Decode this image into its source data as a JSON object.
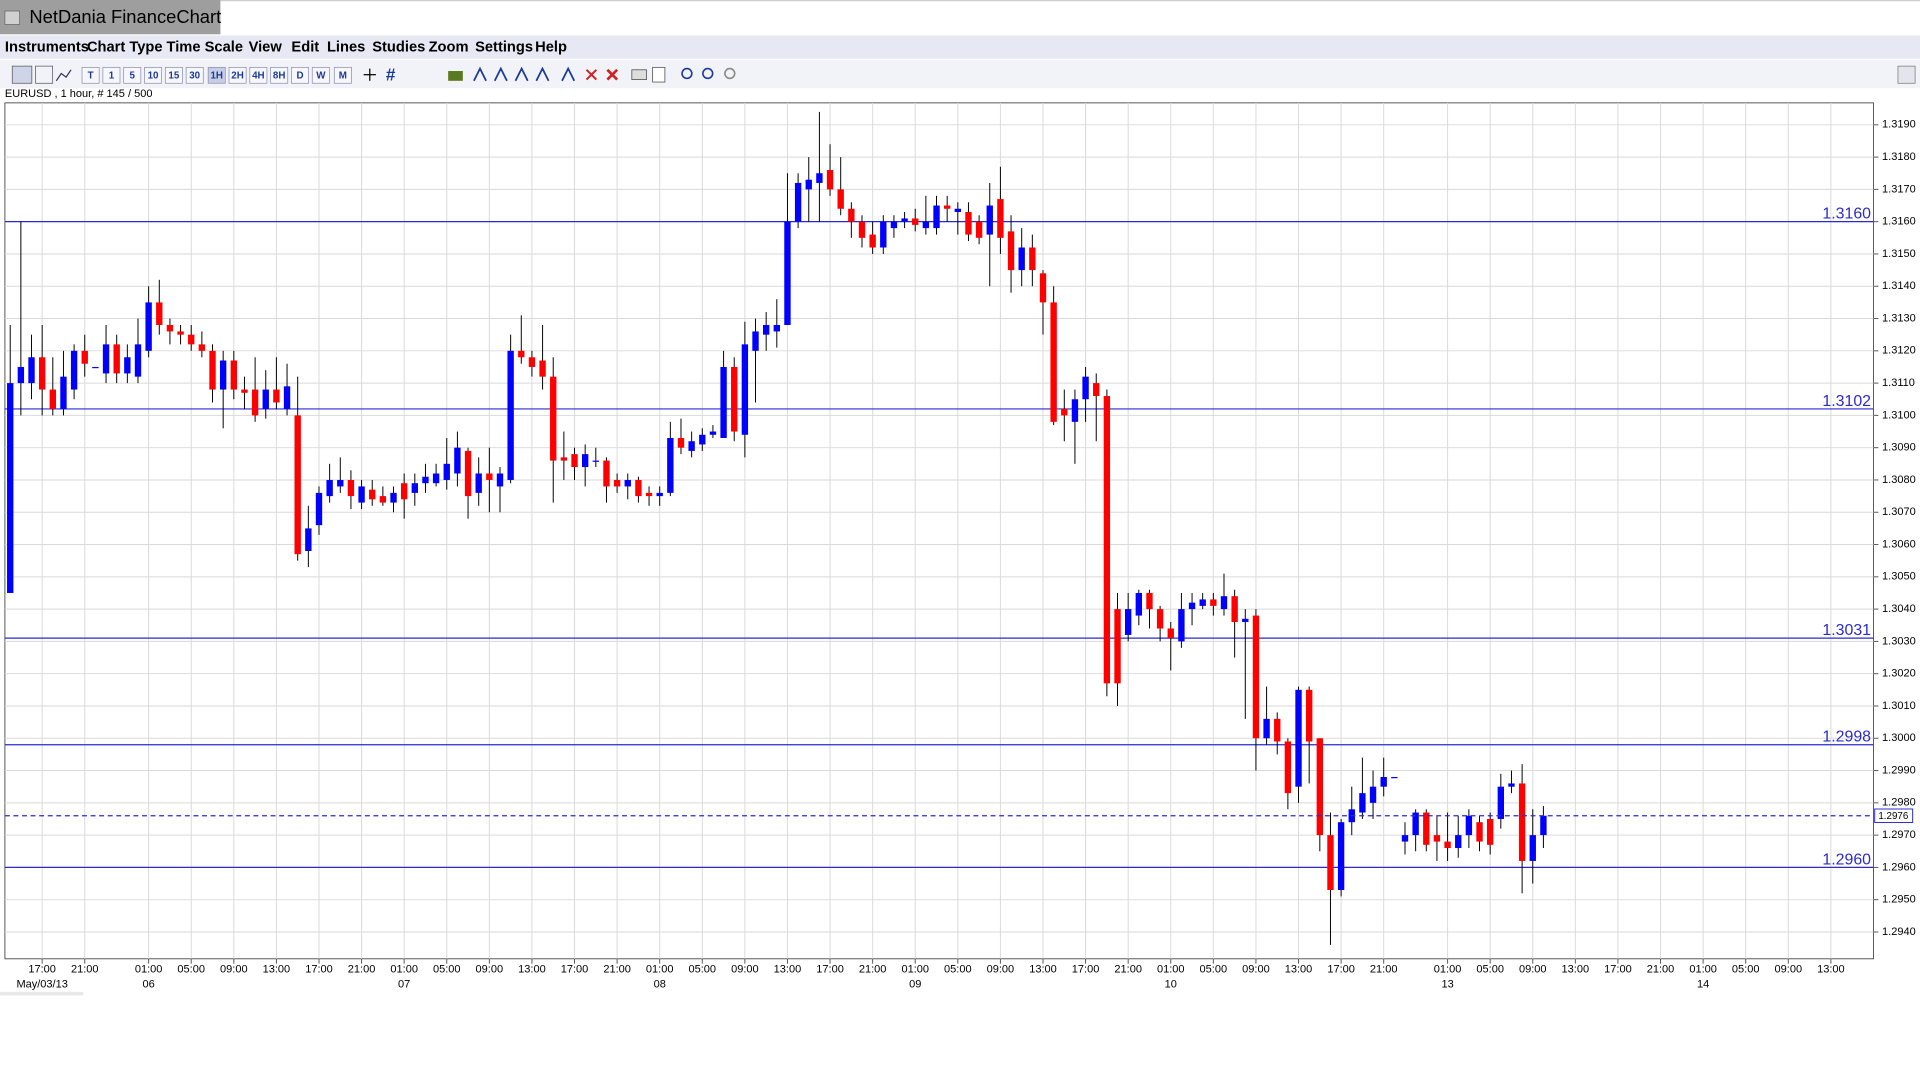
{
  "window": {
    "title": "NetDania FinanceChart"
  },
  "menu": [
    "Instruments",
    "Chart Type",
    "Time Scale",
    "View",
    "Edit",
    "Lines",
    "Studies",
    "Zoom",
    "Settings",
    "Help"
  ],
  "toolbar": [
    "T",
    "1",
    "5",
    "10",
    "15",
    "30",
    "1H",
    "2H",
    "4H",
    "8H",
    "D",
    "W",
    "M"
  ],
  "chart_data": {
    "type": "candlestick",
    "instrument_label": "EURUSD , 1 hour, # 145 / 500",
    "up_color": "#0000ff",
    "down_color": "#ff0000",
    "grid": true,
    "open": [
      1.3045,
      1.311,
      1.311,
      1.3118,
      1.3108,
      1.3102,
      1.3108,
      1.312,
      1.3115,
      1.3113,
      1.3122,
      1.3113,
      1.3112,
      1.312,
      1.3135,
      1.3128,
      1.3126,
      1.3125,
      1.3122,
      1.312,
      1.3108,
      1.3117,
      1.3108,
      1.3108,
      1.3102,
      1.3108,
      1.3102,
      1.31,
      1.3058,
      1.3066,
      1.3075,
      1.3078,
      1.308,
      1.3073,
      1.3077,
      1.3075,
      1.3073,
      1.3079,
      1.3076,
      1.3079,
      1.3079,
      1.308,
      1.3082,
      1.3089,
      1.3076,
      1.3082,
      1.3078,
      1.308,
      1.312,
      1.3118,
      1.3117,
      1.3112,
      1.3087,
      1.3088,
      1.3084,
      1.3086,
      1.3086,
      1.308,
      1.3078,
      1.308,
      1.3076,
      1.3075,
      1.3076,
      1.3093,
      1.3089,
      1.3091,
      1.3094,
      1.3093,
      1.3115,
      1.3094,
      1.312,
      1.3125,
      1.3126,
      1.3128,
      1.316,
      1.317,
      1.3172,
      1.3176,
      1.317,
      1.3164,
      1.316,
      1.3156,
      1.3152,
      1.3158,
      1.316,
      1.3161,
      1.3158,
      1.3158,
      1.3165,
      1.3163,
      1.3163,
      1.316,
      1.3156,
      1.3167,
      1.3157,
      1.3145,
      1.3152,
      1.3144,
      1.3135,
      1.3102,
      1.3098,
      1.3105,
      1.311,
      1.3106,
      1.304,
      1.3032,
      1.3038,
      1.3045,
      1.304,
      1.3034,
      1.303,
      1.304,
      1.3041,
      1.3043,
      1.304,
      1.3044,
      1.3036,
      1.3038,
      1.3,
      1.3006,
      1.2999,
      1.2985,
      1.3015,
      1.3,
      1.297,
      1.2953,
      1.2974,
      1.2977,
      1.298,
      1.2985,
      1.2988,
      1.2968,
      1.297,
      1.2977,
      1.297,
      1.2968,
      1.2966,
      1.297,
      1.2974,
      1.2975,
      1.2975,
      1.2985,
      1.2986,
      1.2962,
      1.297
    ],
    "high": [
      1.3128,
      1.316,
      1.3125,
      1.3128,
      1.3118,
      1.312,
      1.3122,
      1.3125,
      1.3115,
      1.3128,
      1.3125,
      1.3122,
      1.313,
      1.314,
      1.3142,
      1.313,
      1.3128,
      1.3128,
      1.3126,
      1.3122,
      1.312,
      1.312,
      1.3112,
      1.3118,
      1.3114,
      1.3118,
      1.3116,
      1.3112,
      1.3072,
      1.3078,
      1.3085,
      1.3087,
      1.3083,
      1.308,
      1.308,
      1.3078,
      1.3078,
      1.3082,
      1.3082,
      1.3085,
      1.3085,
      1.3093,
      1.3095,
      1.309,
      1.3087,
      1.309,
      1.3084,
      1.3125,
      1.3131,
      1.312,
      1.3128,
      1.3118,
      1.3095,
      1.309,
      1.3091,
      1.309,
      1.3087,
      1.3082,
      1.3082,
      1.3081,
      1.3078,
      1.3078,
      1.3098,
      1.3099,
      1.3095,
      1.3096,
      1.3097,
      1.312,
      1.3118,
      1.3129,
      1.313,
      1.3132,
      1.3136,
      1.3175,
      1.3175,
      1.318,
      1.3194,
      1.3184,
      1.318,
      1.3166,
      1.3162,
      1.316,
      1.3162,
      1.3162,
      1.3163,
      1.3164,
      1.3168,
      1.3168,
      1.3168,
      1.3166,
      1.3166,
      1.3162,
      1.3172,
      1.3177,
      1.3162,
      1.3158,
      1.3156,
      1.3145,
      1.314,
      1.3108,
      1.3108,
      1.3115,
      1.3113,
      1.3108,
      1.3045,
      1.3045,
      1.3046,
      1.3046,
      1.3041,
      1.3036,
      1.3045,
      1.3045,
      1.3045,
      1.3045,
      1.3051,
      1.3046,
      1.304,
      1.304,
      1.3016,
      1.3008,
      1.3,
      1.3016,
      1.3016,
      1.3,
      1.2977,
      1.2975,
      1.2985,
      1.2994,
      1.299,
      1.2994,
      1.2988,
      1.2974,
      1.2978,
      1.2978,
      1.2976,
      1.2977,
      1.2976,
      1.2978,
      1.2976,
      1.2977,
      1.2989,
      1.299,
      1.2992,
      1.2978,
      1.2979
    ],
    "low": [
      1.3045,
      1.31,
      1.3105,
      1.31,
      1.31,
      1.31,
      1.3105,
      1.3112,
      1.3115,
      1.311,
      1.311,
      1.311,
      1.311,
      1.3118,
      1.3125,
      1.3122,
      1.3122,
      1.312,
      1.3118,
      1.3104,
      1.3096,
      1.3105,
      1.3102,
      1.3098,
      1.3099,
      1.3102,
      1.31,
      1.3055,
      1.3053,
      1.3063,
      1.3073,
      1.3076,
      1.3071,
      1.3071,
      1.3072,
      1.3072,
      1.307,
      1.3068,
      1.3072,
      1.3076,
      1.3078,
      1.3077,
      1.3078,
      1.3068,
      1.3072,
      1.307,
      1.307,
      1.3079,
      1.3116,
      1.3112,
      1.3108,
      1.3073,
      1.308,
      1.308,
      1.3078,
      1.3084,
      1.3073,
      1.3076,
      1.3074,
      1.3073,
      1.3072,
      1.3072,
      1.3075,
      1.3088,
      1.3087,
      1.3089,
      1.3093,
      1.3093,
      1.3092,
      1.3087,
      1.3104,
      1.312,
      1.3121,
      1.3128,
      1.3158,
      1.316,
      1.316,
      1.3168,
      1.3162,
      1.3155,
      1.3152,
      1.315,
      1.315,
      1.3155,
      1.3158,
      1.3157,
      1.3156,
      1.3156,
      1.316,
      1.3156,
      1.3154,
      1.3153,
      1.314,
      1.315,
      1.3138,
      1.314,
      1.314,
      1.3125,
      1.3097,
      1.3092,
      1.3085,
      1.3098,
      1.3092,
      1.3013,
      1.301,
      1.303,
      1.3035,
      1.3034,
      1.303,
      1.3021,
      1.3028,
      1.3035,
      1.304,
      1.3038,
      1.3038,
      1.3025,
      1.3006,
      1.299,
      1.2998,
      1.2995,
      1.2978,
      1.298,
      1.2986,
      1.2965,
      1.2936,
      1.2951,
      1.297,
      1.2975,
      1.2975,
      1.2982,
      1.2988,
      1.2964,
      1.2965,
      1.2965,
      1.2962,
      1.2962,
      1.2963,
      1.2966,
      1.2965,
      1.2964,
      1.2972,
      1.2983,
      1.2952,
      1.2955,
      1.2966
    ],
    "close": [
      1.311,
      1.3115,
      1.3118,
      1.3108,
      1.3102,
      1.3112,
      1.312,
      1.3116,
      1.3115,
      1.3122,
      1.3113,
      1.3118,
      1.3122,
      1.3135,
      1.3128,
      1.3126,
      1.3125,
      1.3122,
      1.312,
      1.3108,
      1.3117,
      1.3108,
      1.3107,
      1.31,
      1.3108,
      1.3104,
      1.3109,
      1.3057,
      1.3065,
      1.3076,
      1.308,
      1.308,
      1.3075,
      1.3078,
      1.3074,
      1.3073,
      1.3076,
      1.3074,
      1.3079,
      1.3081,
      1.3082,
      1.3085,
      1.309,
      1.3075,
      1.3082,
      1.308,
      1.3082,
      1.312,
      1.3118,
      1.3115,
      1.3112,
      1.3086,
      1.3086,
      1.3084,
      1.3088,
      1.3086,
      1.3078,
      1.3078,
      1.308,
      1.3075,
      1.3075,
      1.3076,
      1.3093,
      1.309,
      1.3092,
      1.3094,
      1.3095,
      1.3115,
      1.3095,
      1.3122,
      1.3126,
      1.3128,
      1.3128,
      1.316,
      1.3172,
      1.3173,
      1.3175,
      1.317,
      1.3164,
      1.316,
      1.3155,
      1.3152,
      1.316,
      1.316,
      1.3161,
      1.3159,
      1.316,
      1.3165,
      1.3164,
      1.3164,
      1.3156,
      1.3155,
      1.3165,
      1.3155,
      1.3145,
      1.3152,
      1.3145,
      1.3135,
      1.3098,
      1.31,
      1.3105,
      1.3112,
      1.3106,
      1.3017,
      1.3017,
      1.304,
      1.3045,
      1.304,
      1.3034,
      1.3031,
      1.304,
      1.3042,
      1.3043,
      1.3041,
      1.3044,
      1.3036,
      1.3037,
      1.3,
      1.3006,
      1.2999,
      1.2983,
      1.3015,
      1.2999,
      1.297,
      1.2953,
      1.2974,
      1.2978,
      1.2983,
      1.2985,
      1.2988,
      1.2988,
      1.297,
      1.2977,
      1.2967,
      1.2968,
      1.2966,
      1.297,
      1.2976,
      1.2968,
      1.2967,
      1.2985,
      1.2986,
      1.2962,
      1.297,
      1.2976
    ],
    "xlim": [
      -0.5,
      175
    ],
    "xticks": [
      {
        "value": 3,
        "label": "17:00"
      },
      {
        "value": 7,
        "label": "21:00"
      },
      {
        "value": 13,
        "label": "01:00"
      },
      {
        "value": 17,
        "label": "05:00"
      },
      {
        "value": 21,
        "label": "09:00"
      },
      {
        "value": 25,
        "label": "13:00"
      },
      {
        "value": 29,
        "label": "17:00"
      },
      {
        "value": 33,
        "label": "21:00"
      },
      {
        "value": 37,
        "label": "01:00"
      },
      {
        "value": 41,
        "label": "05:00"
      },
      {
        "value": 45,
        "label": "09:00"
      },
      {
        "value": 49,
        "label": "13:00"
      },
      {
        "value": 53,
        "label": "17:00"
      },
      {
        "value": 57,
        "label": "21:00"
      },
      {
        "value": 61,
        "label": "01:00"
      },
      {
        "value": 65,
        "label": "05:00"
      },
      {
        "value": 69,
        "label": "09:00"
      },
      {
        "value": 73,
        "label": "13:00"
      },
      {
        "value": 77,
        "label": "17:00"
      },
      {
        "value": 81,
        "label": "21:00"
      },
      {
        "value": 85,
        "label": "01:00"
      },
      {
        "value": 89,
        "label": "05:00"
      },
      {
        "value": 93,
        "label": "09:00"
      },
      {
        "value": 97,
        "label": "13:00"
      },
      {
        "value": 101,
        "label": "17:00"
      },
      {
        "value": 105,
        "label": "21:00"
      },
      {
        "value": 109,
        "label": "01:00"
      },
      {
        "value": 113,
        "label": "05:00"
      },
      {
        "value": 117,
        "label": "09:00"
      },
      {
        "value": 121,
        "label": "13:00"
      },
      {
        "value": 125,
        "label": "17:00"
      },
      {
        "value": 129,
        "label": "21:00"
      },
      {
        "value": 135,
        "label": "01:00"
      },
      {
        "value": 139,
        "label": "05:00"
      },
      {
        "value": 143,
        "label": "09:00"
      },
      {
        "value": 147,
        "label": "13:00"
      },
      {
        "value": 151,
        "label": "17:00"
      },
      {
        "value": 155,
        "label": "21:00"
      },
      {
        "value": 159,
        "label": "01:00"
      },
      {
        "value": 163,
        "label": "05:00"
      },
      {
        "value": 167,
        "label": "09:00"
      },
      {
        "value": 171,
        "label": "13:00"
      }
    ],
    "date_ticks": [
      {
        "value": 3,
        "label": "May/03/13"
      },
      {
        "value": 13,
        "label": "06"
      },
      {
        "value": 37,
        "label": "07"
      },
      {
        "value": 61,
        "label": "08"
      },
      {
        "value": 85,
        "label": "09"
      },
      {
        "value": 109,
        "label": "10"
      },
      {
        "value": 135,
        "label": "13"
      },
      {
        "value": 159,
        "label": "14"
      }
    ],
    "ylim": [
      1.29317,
      1.31968
    ],
    "yticks": [
      {
        "value": 1.319,
        "label": "1.3190"
      },
      {
        "value": 1.318,
        "label": "1.3180"
      },
      {
        "value": 1.317,
        "label": "1.3170"
      },
      {
        "value": 1.316,
        "label": "1.3160"
      },
      {
        "value": 1.315,
        "label": "1.3150"
      },
      {
        "value": 1.314,
        "label": "1.3140"
      },
      {
        "value": 1.313,
        "label": "1.3130"
      },
      {
        "value": 1.312,
        "label": "1.3120"
      },
      {
        "value": 1.311,
        "label": "1.3110"
      },
      {
        "value": 1.31,
        "label": "1.3100"
      },
      {
        "value": 1.309,
        "label": "1.3090"
      },
      {
        "value": 1.308,
        "label": "1.3080"
      },
      {
        "value": 1.307,
        "label": "1.3070"
      },
      {
        "value": 1.306,
        "label": "1.3060"
      },
      {
        "value": 1.305,
        "label": "1.3050"
      },
      {
        "value": 1.304,
        "label": "1.3040"
      },
      {
        "value": 1.303,
        "label": "1.3030"
      },
      {
        "value": 1.302,
        "label": "1.3020"
      },
      {
        "value": 1.301,
        "label": "1.3010"
      },
      {
        "value": 1.3,
        "label": "1.3000"
      },
      {
        "value": 1.299,
        "label": "1.2990"
      },
      {
        "value": 1.298,
        "label": "1.2980"
      },
      {
        "value": 1.297,
        "label": "1.2970"
      },
      {
        "value": 1.296,
        "label": "1.2960"
      },
      {
        "value": 1.295,
        "label": "1.2950"
      },
      {
        "value": 1.294,
        "label": "1.2940"
      }
    ],
    "levels": [
      {
        "value": 1.316,
        "label": "1.3160"
      },
      {
        "value": 1.3102,
        "label": "1.3102"
      },
      {
        "value": 1.3031,
        "label": "1.3031"
      },
      {
        "value": 1.2998,
        "label": "1.2998"
      },
      {
        "value": 1.296,
        "label": "1.2960"
      }
    ],
    "level_color": "#2a2ad0",
    "current_price": 1.2976
  }
}
